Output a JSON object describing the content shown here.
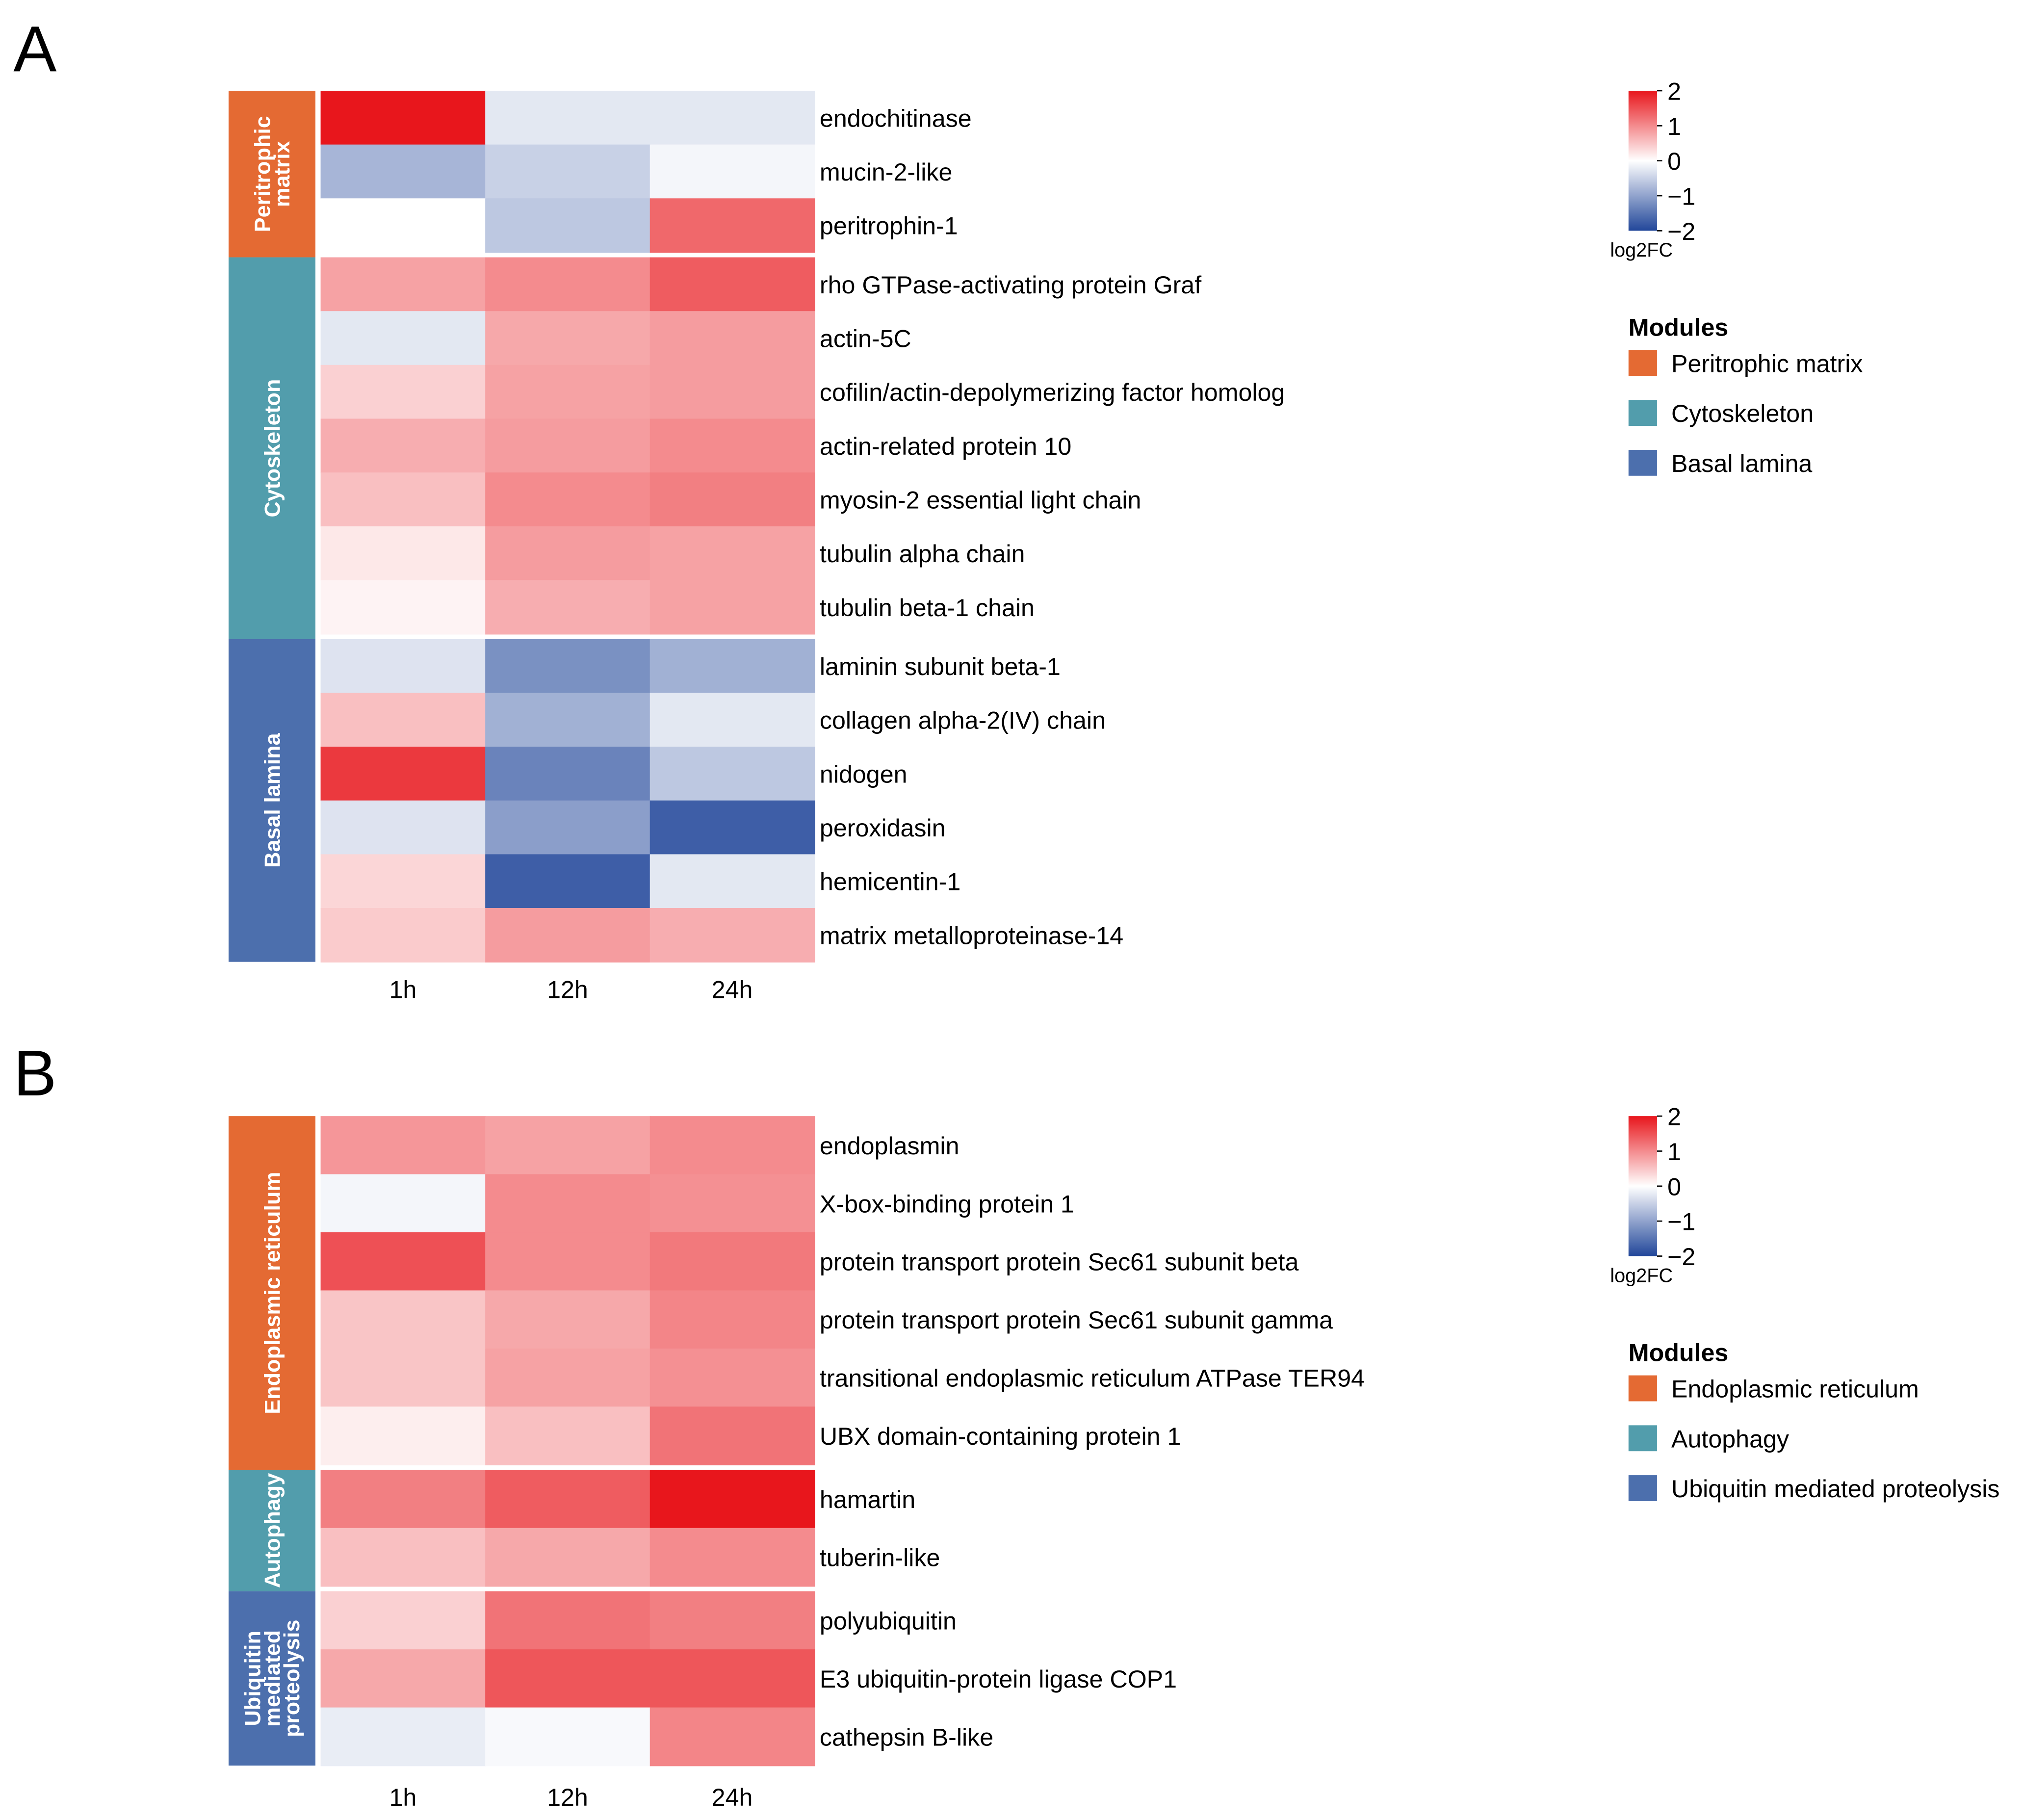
{
  "chart_data": [
    {
      "type": "heatmap",
      "panel": "A",
      "columns": [
        "1h",
        "12h",
        "24h"
      ],
      "color_scale": {
        "min": -2,
        "max": 2,
        "low": "#22479a",
        "mid": "#ffffff",
        "high": "#e8161c",
        "title": "log2FC",
        "ticks": [
          "2",
          "1",
          "0",
          "−1",
          "−2"
        ]
      },
      "legend_title": "Modules",
      "modules": [
        {
          "name": "Peritrophic matrix",
          "bar_lines": [
            "Peritrophic",
            "matrix"
          ],
          "color": "#e46a33",
          "rows": [
            {
              "gene": "endochitinase",
              "values": [
                2.0,
                -0.25,
                -0.25
              ]
            },
            {
              "gene": "mucin-2-like",
              "values": [
                -0.8,
                -0.5,
                -0.1
              ]
            },
            {
              "gene": "peritrophin-1",
              "values": [
                0.0,
                -0.6,
                1.3
              ]
            }
          ]
        },
        {
          "name": "Cytoskeleton",
          "bar_lines": [
            "Cytoskeleton"
          ],
          "color": "#529dac",
          "rows": [
            {
              "gene": "rho GTPase-activating protein Graf",
              "values": [
                0.8,
                1.0,
                1.4
              ]
            },
            {
              "gene": "actin-5C",
              "values": [
                -0.25,
                0.75,
                0.85
              ]
            },
            {
              "gene": "cofilin/actin-depolymerizing factor homolog",
              "values": [
                0.4,
                0.8,
                0.85
              ]
            },
            {
              "gene": "actin-related protein 10",
              "values": [
                0.7,
                0.85,
                1.0
              ]
            },
            {
              "gene": "myosin-2 essential light chain",
              "values": [
                0.55,
                1.0,
                1.1
              ]
            },
            {
              "gene": "tubulin alpha chain",
              "values": [
                0.2,
                0.85,
                0.8
              ]
            },
            {
              "gene": "tubulin beta-1 chain",
              "values": [
                0.1,
                0.7,
                0.8
              ]
            }
          ]
        },
        {
          "name": "Basal lamina",
          "bar_lines": [
            "Basal lamina"
          ],
          "color": "#4c6fad",
          "rows": [
            {
              "gene": "laminin subunit beta-1",
              "values": [
                -0.3,
                -1.2,
                -0.85
              ]
            },
            {
              "gene": "collagen alpha-2(IV) chain",
              "values": [
                0.55,
                -0.85,
                -0.25
              ]
            },
            {
              "gene": "nidogen",
              "values": [
                1.7,
                -1.35,
                -0.6
              ]
            },
            {
              "gene": "peroxidasin",
              "values": [
                -0.3,
                -1.05,
                -1.75
              ]
            },
            {
              "gene": "hemicentin-1",
              "values": [
                0.35,
                -1.75,
                -0.25
              ]
            },
            {
              "gene": "matrix metalloproteinase-14",
              "values": [
                0.45,
                0.85,
                0.7
              ]
            }
          ]
        }
      ]
    },
    {
      "type": "heatmap",
      "panel": "B",
      "columns": [
        "1h",
        "12h",
        "24h"
      ],
      "color_scale": {
        "min": -2,
        "max": 2,
        "low": "#22479a",
        "mid": "#ffffff",
        "high": "#e8161c",
        "title": "log2FC",
        "ticks": [
          "2",
          "1",
          "0",
          "−1",
          "−2"
        ]
      },
      "legend_title": "Modules",
      "modules": [
        {
          "name": "Endoplasmic reticulum",
          "bar_lines": [
            "Endoplasmic reticulum"
          ],
          "color": "#e46a33",
          "rows": [
            {
              "gene": "endoplasmin",
              "values": [
                0.9,
                0.8,
                1.0
              ]
            },
            {
              "gene": "X-box-binding protein 1",
              "values": [
                -0.1,
                1.0,
                0.95
              ]
            },
            {
              "gene": "protein transport protein Sec61 subunit beta",
              "values": [
                1.5,
                1.0,
                1.15
              ]
            },
            {
              "gene": "protein transport protein Sec61 subunit gamma",
              "values": [
                0.5,
                0.75,
                1.05
              ]
            },
            {
              "gene": "transitional endoplasmic reticulum ATPase TER94",
              "values": [
                0.5,
                0.8,
                0.95
              ]
            },
            {
              "gene": "UBX domain-containing protein 1",
              "values": [
                0.15,
                0.55,
                1.2
              ]
            }
          ]
        },
        {
          "name": "Autophagy",
          "bar_lines": [
            "Autophagy"
          ],
          "color": "#529dac",
          "rows": [
            {
              "gene": "hamartin",
              "values": [
                1.1,
                1.4,
                2.0
              ]
            },
            {
              "gene": "tuberin-like",
              "values": [
                0.55,
                0.75,
                1.0
              ]
            }
          ]
        },
        {
          "name": "Ubiquitin mediated proteolysis",
          "bar_lines": [
            "Ubiquitin",
            "mediated",
            "proteolysis"
          ],
          "color": "#4c6fad",
          "rows": [
            {
              "gene": "polyubiquitin",
              "values": [
                0.4,
                1.2,
                1.1
              ]
            },
            {
              "gene": "E3 ubiquitin-protein ligase COP1",
              "values": [
                0.75,
                1.45,
                1.45
              ]
            },
            {
              "gene": "cathepsin B-like",
              "values": [
                -0.2,
                -0.06,
                1.05
              ]
            }
          ]
        }
      ]
    }
  ]
}
